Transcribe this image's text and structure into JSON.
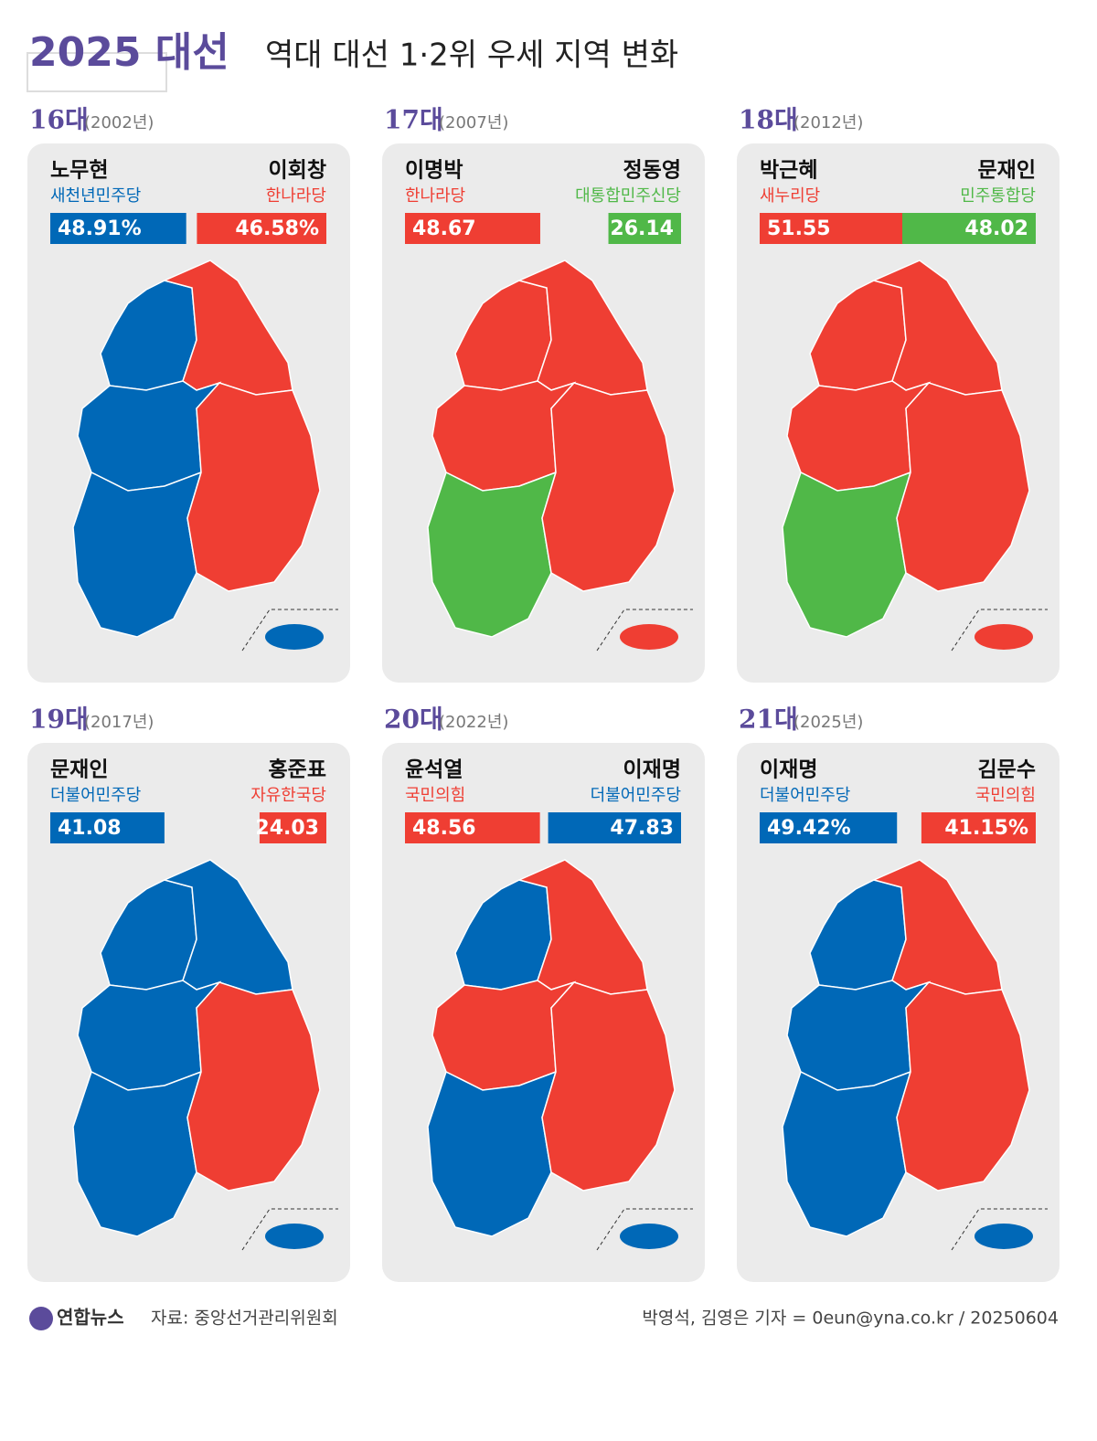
{
  "header": {
    "brand": "2025 대선",
    "title": "역대 대선 1·2위 우세 지역 변화"
  },
  "panels": [
    {
      "label": "16대",
      "year": "(2002년)",
      "candidates": [
        {
          "name": "노무현",
          "party": "새천년민주당",
          "color": "#0068b7",
          "value": 48.91,
          "value_label": "48.91%"
        },
        {
          "name": "이회창",
          "party": "한나라당",
          "color": "#ef3e33",
          "value": 46.58,
          "value_label": "46.58%"
        }
      ],
      "map_colors": [
        "#0068b7",
        "#ef3e33",
        "#0068b7",
        "#0068b7",
        "#ef3e33",
        "#0068b7"
      ]
    },
    {
      "label": "17대",
      "year": "(2007년)",
      "candidates": [
        {
          "name": "이명박",
          "party": "한나라당",
          "color": "#ef3e33",
          "value": 48.67
        },
        {
          "name": "정동영",
          "party": "대통합민주신당",
          "color": "#50b848",
          "value": 26.14
        }
      ],
      "map_colors": [
        "#ef3e33",
        "#ef3e33",
        "#ef3e33",
        "#50b848",
        "#ef3e33",
        "#ef3e33"
      ]
    },
    {
      "label": "18대",
      "year": "(2012년)",
      "candidates": [
        {
          "name": "박근혜",
          "party": "새누리당",
          "color": "#ef3e33",
          "value": 51.55
        },
        {
          "name": "문재인",
          "party": "민주통합당",
          "color": "#50b848",
          "value": 48.02
        }
      ],
      "map_colors": [
        "#ef3e33",
        "#ef3e33",
        "#ef3e33",
        "#50b848",
        "#ef3e33",
        "#ef3e33"
      ]
    },
    {
      "label": "19대",
      "year": "(2017년)",
      "candidates": [
        {
          "name": "문재인",
          "party": "더불어민주당",
          "color": "#0068b7",
          "value": 41.08
        },
        {
          "name": "홍준표",
          "party": "자유한국당",
          "color": "#ef3e33",
          "value": 24.03
        }
      ],
      "map_colors": [
        "#0068b7",
        "#0068b7",
        "#0068b7",
        "#0068b7",
        "#ef3e33",
        "#0068b7"
      ]
    },
    {
      "label": "20대",
      "year": "(2022년)",
      "candidates": [
        {
          "name": "윤석열",
          "party": "국민의힘",
          "color": "#ef3e33",
          "value": 48.56
        },
        {
          "name": "이재명",
          "party": "더불어민주당",
          "color": "#0068b7",
          "value": 47.83
        }
      ],
      "map_colors": [
        "#0068b7",
        "#ef3e33",
        "#ef3e33",
        "#0068b7",
        "#ef3e33",
        "#0068b7"
      ]
    },
    {
      "label": "21대",
      "year": "(2025년)",
      "candidates": [
        {
          "name": "이재명",
          "party": "더불어민주당",
          "color": "#0068b7",
          "value": 49.42,
          "value_label": "49.42%"
        },
        {
          "name": "김문수",
          "party": "국민의힘",
          "color": "#ef3e33",
          "value": 41.15,
          "value_label": "41.15%"
        }
      ],
      "map_colors": [
        "#0068b7",
        "#ef3e33",
        "#0068b7",
        "#0068b7",
        "#ef3e33",
        "#0068b7"
      ]
    }
  ],
  "footer": {
    "logo": "연합뉴스",
    "source": "자료: 중앙선거관리위원회",
    "credit": "박영석, 김영은 기자 = 0eun@yna.co.kr / 20250604"
  }
}
